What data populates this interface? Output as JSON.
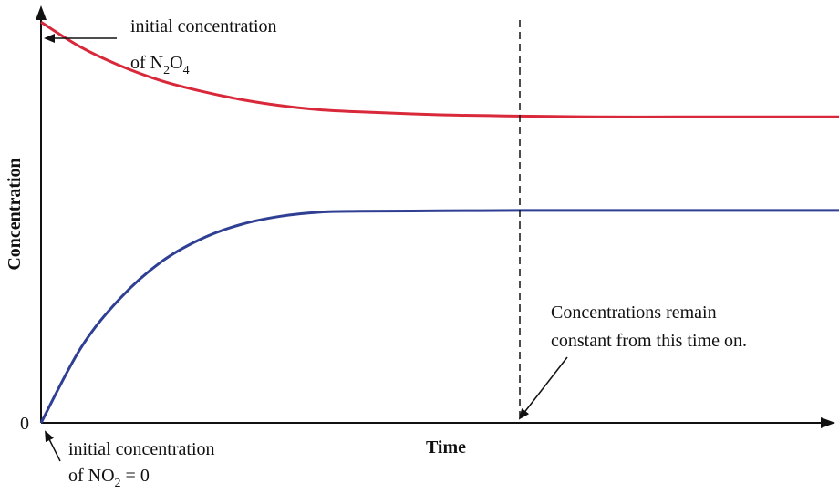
{
  "chart_data": {
    "type": "line",
    "xlabel": "Time",
    "ylabel": "Concentration",
    "y_tick_zero": "0",
    "xlim": [
      0,
      100
    ],
    "ylim": [
      0,
      100
    ],
    "grid": false,
    "series": [
      {
        "color": "#d8283a",
        "x": [
          0,
          5,
          10,
          15,
          20,
          25,
          30,
          35,
          40,
          50,
          60,
          70,
          80,
          90,
          100
        ],
        "y": [
          96,
          90,
          85.5,
          82,
          79.5,
          77.5,
          76,
          75,
          74.5,
          73.8,
          73.5,
          73.3,
          73.3,
          73.3,
          73.3
        ]
      },
      {
        "color": "#2f3f93",
        "x": [
          0,
          5,
          10,
          15,
          20,
          25,
          30,
          35,
          40,
          50,
          60,
          70,
          80,
          90,
          100
        ],
        "y": [
          0,
          18,
          30,
          38.5,
          44,
          47.5,
          49.5,
          50.5,
          50.7,
          50.8,
          50.9,
          50.9,
          50.9,
          50.9,
          50.9
        ]
      }
    ],
    "equilibrium_time": 60,
    "annotations": {
      "n2o4_line1": "initial concentration",
      "n2o4_line2_prefix": "of N",
      "n2o4_sub1": "2",
      "n2o4_mid": "O",
      "n2o4_sub2": "4",
      "no2_line1": "initial concentration",
      "no2_line2_prefix": "of NO",
      "no2_sub": "2",
      "no2_line2_suffix": " = 0",
      "constant_line1": "Concentrations remain",
      "constant_line2": "constant from this time on."
    }
  }
}
